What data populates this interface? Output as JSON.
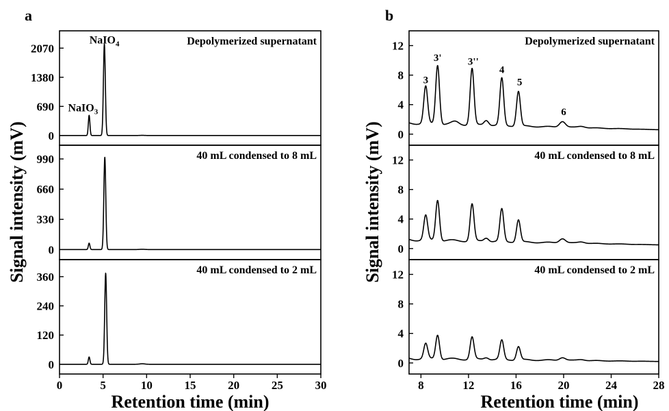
{
  "figure": {
    "panel_a_letter": "a",
    "panel_b_letter": "b",
    "ylabel": "Signal intensity (mV)",
    "xlabel": "Retention time (min)"
  },
  "chart_data": [
    {
      "type": "line",
      "panel": "a",
      "xlabel": "Retention time (min)",
      "ylabel": "Signal intensity (mV)",
      "xlim": [
        0,
        30
      ],
      "xticks": [
        0,
        5,
        10,
        15,
        20,
        25,
        30
      ],
      "xtick_labels": [
        "0",
        "5",
        "10",
        "15",
        "20",
        "25",
        "30"
      ],
      "grid": false,
      "subplots": [
        {
          "label": "Depolymerized supernatant",
          "ylim": [
            -230,
            2480
          ],
          "yticks": [
            0,
            690,
            1380,
            2070
          ],
          "ytick_labels": [
            "0",
            "690",
            "1380",
            "2070"
          ],
          "baseline": 0,
          "peaks": [
            {
              "x": 3.4,
              "height": 480,
              "width": 0.09
            },
            {
              "x": 5.15,
              "height": 2170,
              "width": 0.11
            },
            {
              "x": 9.5,
              "height": 4,
              "width": 0.3
            }
          ],
          "annotations": [
            {
              "base": "NaIO",
              "sub": "4",
              "x": 5.15,
              "y": 2180
            },
            {
              "base": "NaIO",
              "sub": "3",
              "x": 2.7,
              "y": 570
            }
          ]
        },
        {
          "label": "40 mL condensed to 8 mL",
          "ylim": [
            -110,
            1140
          ],
          "yticks": [
            0,
            330,
            660,
            990
          ],
          "ytick_labels": [
            "0",
            "330",
            "660",
            "990"
          ],
          "baseline": 0,
          "peaks": [
            {
              "x": 3.4,
              "height": 70,
              "width": 0.09
            },
            {
              "x": 5.2,
              "height": 1010,
              "width": 0.11
            },
            {
              "x": 9.5,
              "height": 3,
              "width": 0.3
            }
          ],
          "annotations": []
        },
        {
          "label": "40 mL condensed to 2 mL",
          "ylim": [
            -40,
            430
          ],
          "yticks": [
            0,
            120,
            240,
            360
          ],
          "ytick_labels": [
            "0",
            "120",
            "240",
            "360"
          ],
          "baseline": 0,
          "peaks": [
            {
              "x": 3.4,
              "height": 30,
              "width": 0.09
            },
            {
              "x": 5.3,
              "height": 375,
              "width": 0.11
            },
            {
              "x": 9.5,
              "height": 2,
              "width": 0.3
            }
          ],
          "annotations": []
        }
      ]
    },
    {
      "type": "line",
      "panel": "b",
      "xlabel": "Retention time (min)",
      "ylabel": "Signal intensity (mV)",
      "xlim": [
        7,
        28
      ],
      "xticks": [
        8,
        12,
        16,
        20,
        24,
        28
      ],
      "xtick_labels": [
        "8",
        "12",
        "16",
        "20",
        "24",
        "28"
      ],
      "grid": false,
      "subplots": [
        {
          "label": "Depolymerized supernatant",
          "ylim": [
            -1.5,
            14
          ],
          "yticks": [
            0,
            4,
            8,
            12
          ],
          "ytick_labels": [
            "0",
            "4",
            "8",
            "12"
          ],
          "baseline_start": 1.5,
          "baseline_end": 0.6,
          "peaks": [
            {
              "x": 8.4,
              "height": 5.0,
              "width": 0.16
            },
            {
              "x": 9.4,
              "height": 8.0,
              "width": 0.16
            },
            {
              "x": 10.9,
              "height": 0.35,
              "width": 0.3
            },
            {
              "x": 12.3,
              "height": 7.6,
              "width": 0.16
            },
            {
              "x": 13.5,
              "height": 0.7,
              "width": 0.2
            },
            {
              "x": 14.8,
              "height": 6.4,
              "width": 0.16
            },
            {
              "x": 16.2,
              "height": 4.7,
              "width": 0.16
            },
            {
              "x": 19.9,
              "height": 0.8,
              "width": 0.25
            },
            {
              "x": 21.5,
              "height": 0.2,
              "width": 0.3
            }
          ],
          "annotations": [
            {
              "text": "3",
              "x": 8.4,
              "y": 6.9
            },
            {
              "text": "3'",
              "x": 9.4,
              "y": 9.9
            },
            {
              "text": "3''",
              "x": 12.4,
              "y": 9.4
            },
            {
              "text": "4",
              "x": 14.8,
              "y": 8.3
            },
            {
              "text": "5",
              "x": 16.3,
              "y": 6.6
            },
            {
              "text": "6",
              "x": 20.0,
              "y": 2.6
            }
          ]
        },
        {
          "label": "40 mL condensed to 8 mL",
          "ylim": [
            -1.5,
            14
          ],
          "yticks": [
            0,
            4,
            8,
            12
          ],
          "ytick_labels": [
            "0",
            "4",
            "8",
            "12"
          ],
          "baseline_start": 1.2,
          "baseline_end": 0.5,
          "peaks": [
            {
              "x": 8.4,
              "height": 3.3,
              "width": 0.16
            },
            {
              "x": 9.4,
              "height": 5.5,
              "width": 0.16
            },
            {
              "x": 12.3,
              "height": 5.0,
              "width": 0.16
            },
            {
              "x": 13.5,
              "height": 0.5,
              "width": 0.2
            },
            {
              "x": 14.8,
              "height": 4.4,
              "width": 0.16
            },
            {
              "x": 16.2,
              "height": 3.0,
              "width": 0.16
            },
            {
              "x": 19.9,
              "height": 0.6,
              "width": 0.25
            },
            {
              "x": 21.5,
              "height": 0.2,
              "width": 0.3
            }
          ],
          "annotations": []
        },
        {
          "label": "40 mL condensed to 2 mL",
          "ylim": [
            -1.5,
            14
          ],
          "yticks": [
            0,
            4,
            8,
            12
          ],
          "ytick_labels": [
            "0",
            "4",
            "8",
            "12"
          ],
          "baseline_start": 0.6,
          "baseline_end": 0.2,
          "peaks": [
            {
              "x": 8.4,
              "height": 2.0,
              "width": 0.16
            },
            {
              "x": 9.4,
              "height": 3.3,
              "width": 0.16
            },
            {
              "x": 12.3,
              "height": 3.0,
              "width": 0.16
            },
            {
              "x": 13.5,
              "height": 0.3,
              "width": 0.2
            },
            {
              "x": 14.8,
              "height": 2.6,
              "width": 0.16
            },
            {
              "x": 16.2,
              "height": 1.8,
              "width": 0.16
            },
            {
              "x": 19.9,
              "height": 0.4,
              "width": 0.25
            },
            {
              "x": 21.5,
              "height": 0.15,
              "width": 0.3
            }
          ],
          "annotations": []
        }
      ]
    }
  ]
}
